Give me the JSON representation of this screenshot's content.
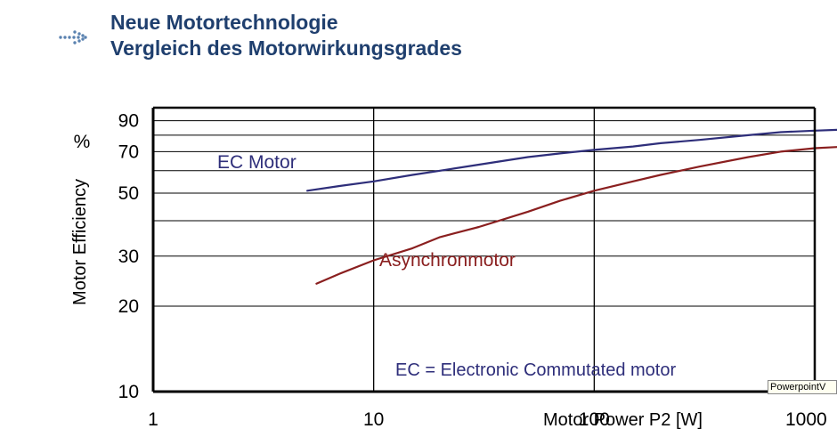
{
  "slide": {
    "title_line1": "Neue Motortechnologie",
    "title_line2": "Vergleich des Motorwirkungsgrades",
    "accent_color": "#1f3f6e",
    "bullet_icon": "dotted-arrow-icon",
    "tooltip_text": "PowerpointV"
  },
  "chart_data": {
    "type": "line",
    "title": "",
    "xlabel": "Motor Power P2 [W]",
    "ylabel": "Motor Efficiency",
    "yunit": "%",
    "x_scale": "log",
    "y_scale": "log",
    "xlim": [
      1,
      1000
    ],
    "ylim": [
      10,
      100
    ],
    "x_ticks": [
      1,
      10,
      100,
      1000
    ],
    "x_tick_labels": [
      "1",
      "10",
      "100",
      "1000"
    ],
    "y_ticks": [
      10,
      20,
      30,
      50,
      70,
      90
    ],
    "y_tick_labels": [
      "10",
      "20",
      "30",
      "50",
      "70",
      "90"
    ],
    "grid": true,
    "annotation": "EC = Electronic Commutated motor",
    "series": [
      {
        "name": "EC Motor",
        "color": "#2e2e7a",
        "x": [
          5,
          7,
          10,
          15,
          20,
          30,
          50,
          70,
          100,
          150,
          200,
          300,
          500,
          700,
          1000,
          1500
        ],
        "y": [
          51,
          53,
          55,
          58,
          60,
          63,
          67,
          69,
          71,
          73,
          75,
          77,
          80,
          82,
          83,
          84
        ]
      },
      {
        "name": "Asynchronmotor",
        "color": "#8a1f1f",
        "x": [
          5.5,
          7,
          10,
          15,
          20,
          30,
          50,
          70,
          100,
          150,
          200,
          300,
          500,
          700,
          1000,
          1400
        ],
        "y": [
          24,
          26,
          29,
          32,
          35,
          38,
          43,
          47,
          51,
          55,
          58,
          62,
          67,
          70,
          72,
          73
        ]
      }
    ]
  }
}
